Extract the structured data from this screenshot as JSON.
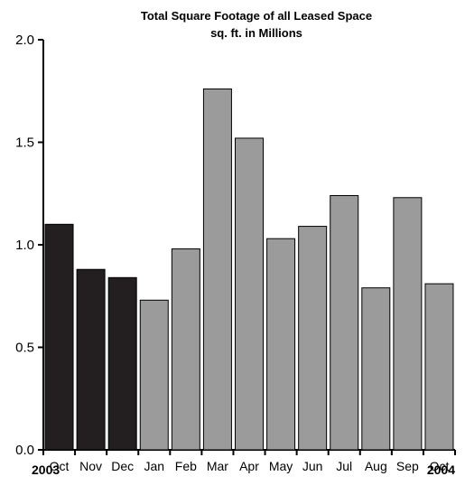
{
  "chart_data": {
    "type": "bar",
    "title": "Total Square Footage of all Leased Space",
    "subtitle": "sq. ft. in Millions",
    "categories": [
      "Oct",
      "Nov",
      "Dec",
      "Jan",
      "Feb",
      "Mar",
      "Apr",
      "May",
      "Jun",
      "Jul",
      "Aug",
      "Sep",
      "Oct"
    ],
    "values": [
      1.1,
      0.88,
      0.84,
      0.73,
      0.98,
      1.76,
      1.52,
      1.03,
      1.09,
      1.24,
      0.79,
      1.23,
      0.81
    ],
    "bar_colors": [
      "#231f20",
      "#231f20",
      "#231f20",
      "#9b9b9b",
      "#9b9b9b",
      "#9b9b9b",
      "#9b9b9b",
      "#9b9b9b",
      "#9b9b9b",
      "#9b9b9b",
      "#9b9b9b",
      "#9b9b9b",
      "#9b9b9b"
    ],
    "year_labels": {
      "start": "2003",
      "end": "2004"
    },
    "y_ticks": [
      "0.0",
      "0.5",
      "1.0",
      "1.5",
      "2.0"
    ],
    "ylim": [
      0,
      2.0
    ],
    "xlabel": "",
    "ylabel": "",
    "grid": false,
    "legend": "none"
  }
}
